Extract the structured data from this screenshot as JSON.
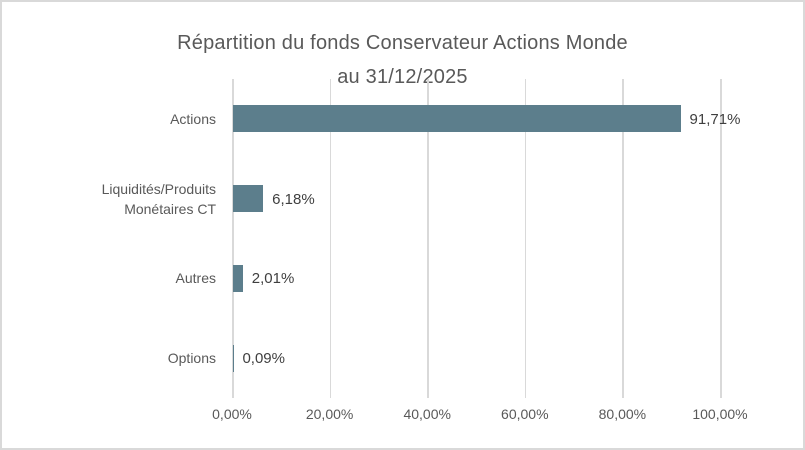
{
  "window": {
    "background": "#FFFFFF",
    "border_color": "#D9D9D9"
  },
  "chart_data": {
    "type": "bar",
    "orientation": "horizontal",
    "title": "Répartition du fonds Conservateur Actions Monde au 31/12/2025",
    "title_lines": [
      "Répartition du fonds Conservateur Actions Monde",
      "au 31/12/2025"
    ],
    "categories": [
      "Actions",
      "Liquidités/Produits Monétaires CT",
      "Autres",
      "Options"
    ],
    "category_label_lines": [
      [
        "Actions"
      ],
      [
        "Liquidités/Produits",
        "Monétaires CT"
      ],
      [
        "Autres"
      ],
      [
        "Options"
      ]
    ],
    "values": [
      91.71,
      6.18,
      2.01,
      0.09
    ],
    "value_labels": [
      "91,71%",
      "6,18%",
      "2,01%",
      "0,09%"
    ],
    "x_tick_labels": [
      "0,00%",
      "20,00%",
      "40,00%",
      "60,00%",
      "80,00%",
      "100,00%"
    ],
    "x_tick_values": [
      0,
      20,
      40,
      60,
      80,
      100
    ],
    "xlim": [
      0,
      100
    ],
    "grid": true,
    "legend": "none",
    "colors": {
      "bar": "#5C7E8C",
      "title_text": "#595959",
      "axis_text": "#595959",
      "value_label_text": "#3F3F3F",
      "gridline": "#D9D9D9"
    }
  }
}
